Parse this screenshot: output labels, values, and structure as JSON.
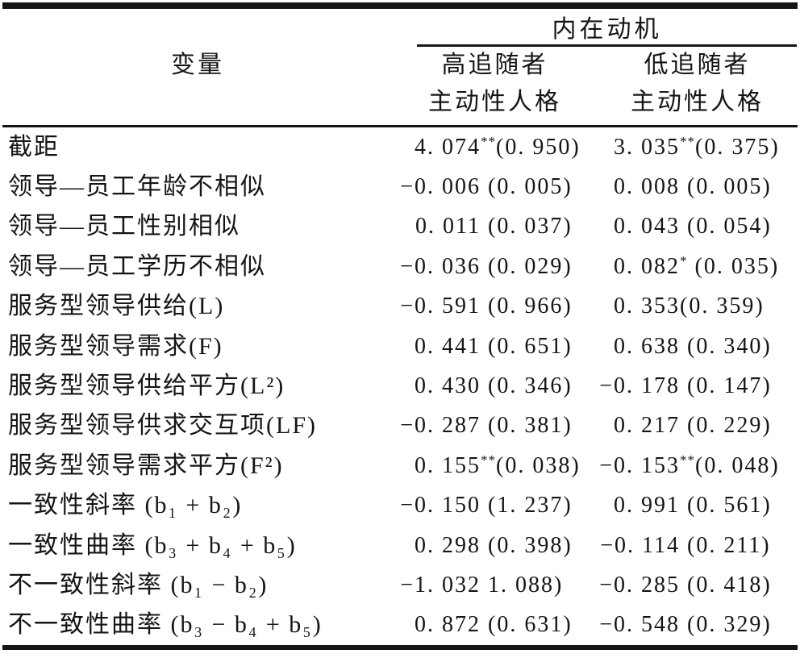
{
  "colors": {
    "background": "#ffffff",
    "ink": "#151515",
    "rule": "#151515"
  },
  "header": {
    "variable_col": "变量",
    "spanner": "内在动机",
    "high_group_line1": "高追随者",
    "high_group_line2": "主动性人格",
    "low_group_line1": "低追随者",
    "low_group_line2": "主动性人格"
  },
  "rows": [
    {
      "label": "截距",
      "high": {
        "coef": "4. 074",
        "stars": "**",
        "se": "(0. 950)"
      },
      "low": {
        "coef": "3. 035",
        "stars": "**",
        "se": "(0. 375)"
      }
    },
    {
      "label": "领导—员工年龄不相似",
      "high": {
        "coef": "−0. 006",
        "stars": "",
        "se": " (0. 005)"
      },
      "low": {
        "coef": "0. 008",
        "stars": "",
        "se": " (0. 005)"
      }
    },
    {
      "label": "领导—员工性别相似",
      "high": {
        "coef": "0. 011",
        "stars": "",
        "se": " (0. 037)"
      },
      "low": {
        "coef": "0. 043",
        "stars": "",
        "se": " (0. 054)"
      }
    },
    {
      "label": "领导—员工学历不相似",
      "high": {
        "coef": "−0. 036",
        "stars": "",
        "se": " (0. 029)"
      },
      "low": {
        "coef": "0. 082",
        "stars": "*",
        "se": " (0. 035)"
      }
    },
    {
      "label": "服务型领导供给(L)",
      "high": {
        "coef": "−0. 591",
        "stars": "",
        "se": " (0. 966)"
      },
      "low": {
        "coef": "0. 353",
        "stars": "",
        "se": "(0. 359)"
      }
    },
    {
      "label": "服务型领导需求(F)",
      "high": {
        "coef": "0. 441",
        "stars": "",
        "se": " (0. 651)"
      },
      "low": {
        "coef": "0. 638",
        "stars": "",
        "se": " (0. 340)"
      }
    },
    {
      "label": "服务型领导供给平方(L²)",
      "high": {
        "coef": "0. 430",
        "stars": "",
        "se": " (0. 346)"
      },
      "low": {
        "coef": "−0. 178",
        "stars": "",
        "se": " (0. 147)"
      }
    },
    {
      "label": "服务型领导供求交互项(LF)",
      "high": {
        "coef": "−0. 287",
        "stars": "",
        "se": " (0. 381)"
      },
      "low": {
        "coef": "0. 217",
        "stars": "",
        "se": " (0. 229)"
      }
    },
    {
      "label": "服务型领导需求平方(F²)",
      "high": {
        "coef": "0. 155",
        "stars": "**",
        "se": "(0. 038)"
      },
      "low": {
        "coef": "−0. 153",
        "stars": "**",
        "se": "(0. 048)"
      }
    },
    {
      "label": "一致性斜率 (b₁ + b₂)",
      "high": {
        "coef": "−0. 150",
        "stars": "",
        "se": " (1. 237)"
      },
      "low": {
        "coef": "0. 991",
        "stars": "",
        "se": " (0. 561)"
      }
    },
    {
      "label": "一致性曲率 (b₃ + b₄ + b₅)",
      "high": {
        "coef": "0. 298",
        "stars": "",
        "se": " (0. 398)"
      },
      "low": {
        "coef": "−0. 114",
        "stars": "",
        "se": " (0. 211)"
      }
    },
    {
      "label": "不一致性斜率 (b₁ − b₂)",
      "high": {
        "coef": "−1. 032",
        "stars": "",
        "se": " 1. 088)"
      },
      "low": {
        "coef": "−0. 285",
        "stars": "",
        "se": " (0. 418)"
      }
    },
    {
      "label": "不一致性曲率 (b₃ − b₄ + b₅)",
      "high": {
        "coef": "0. 872",
        "stars": "",
        "se": " (0. 631)"
      },
      "low": {
        "coef": "−0. 548",
        "stars": "",
        "se": " (0. 329)"
      }
    }
  ]
}
